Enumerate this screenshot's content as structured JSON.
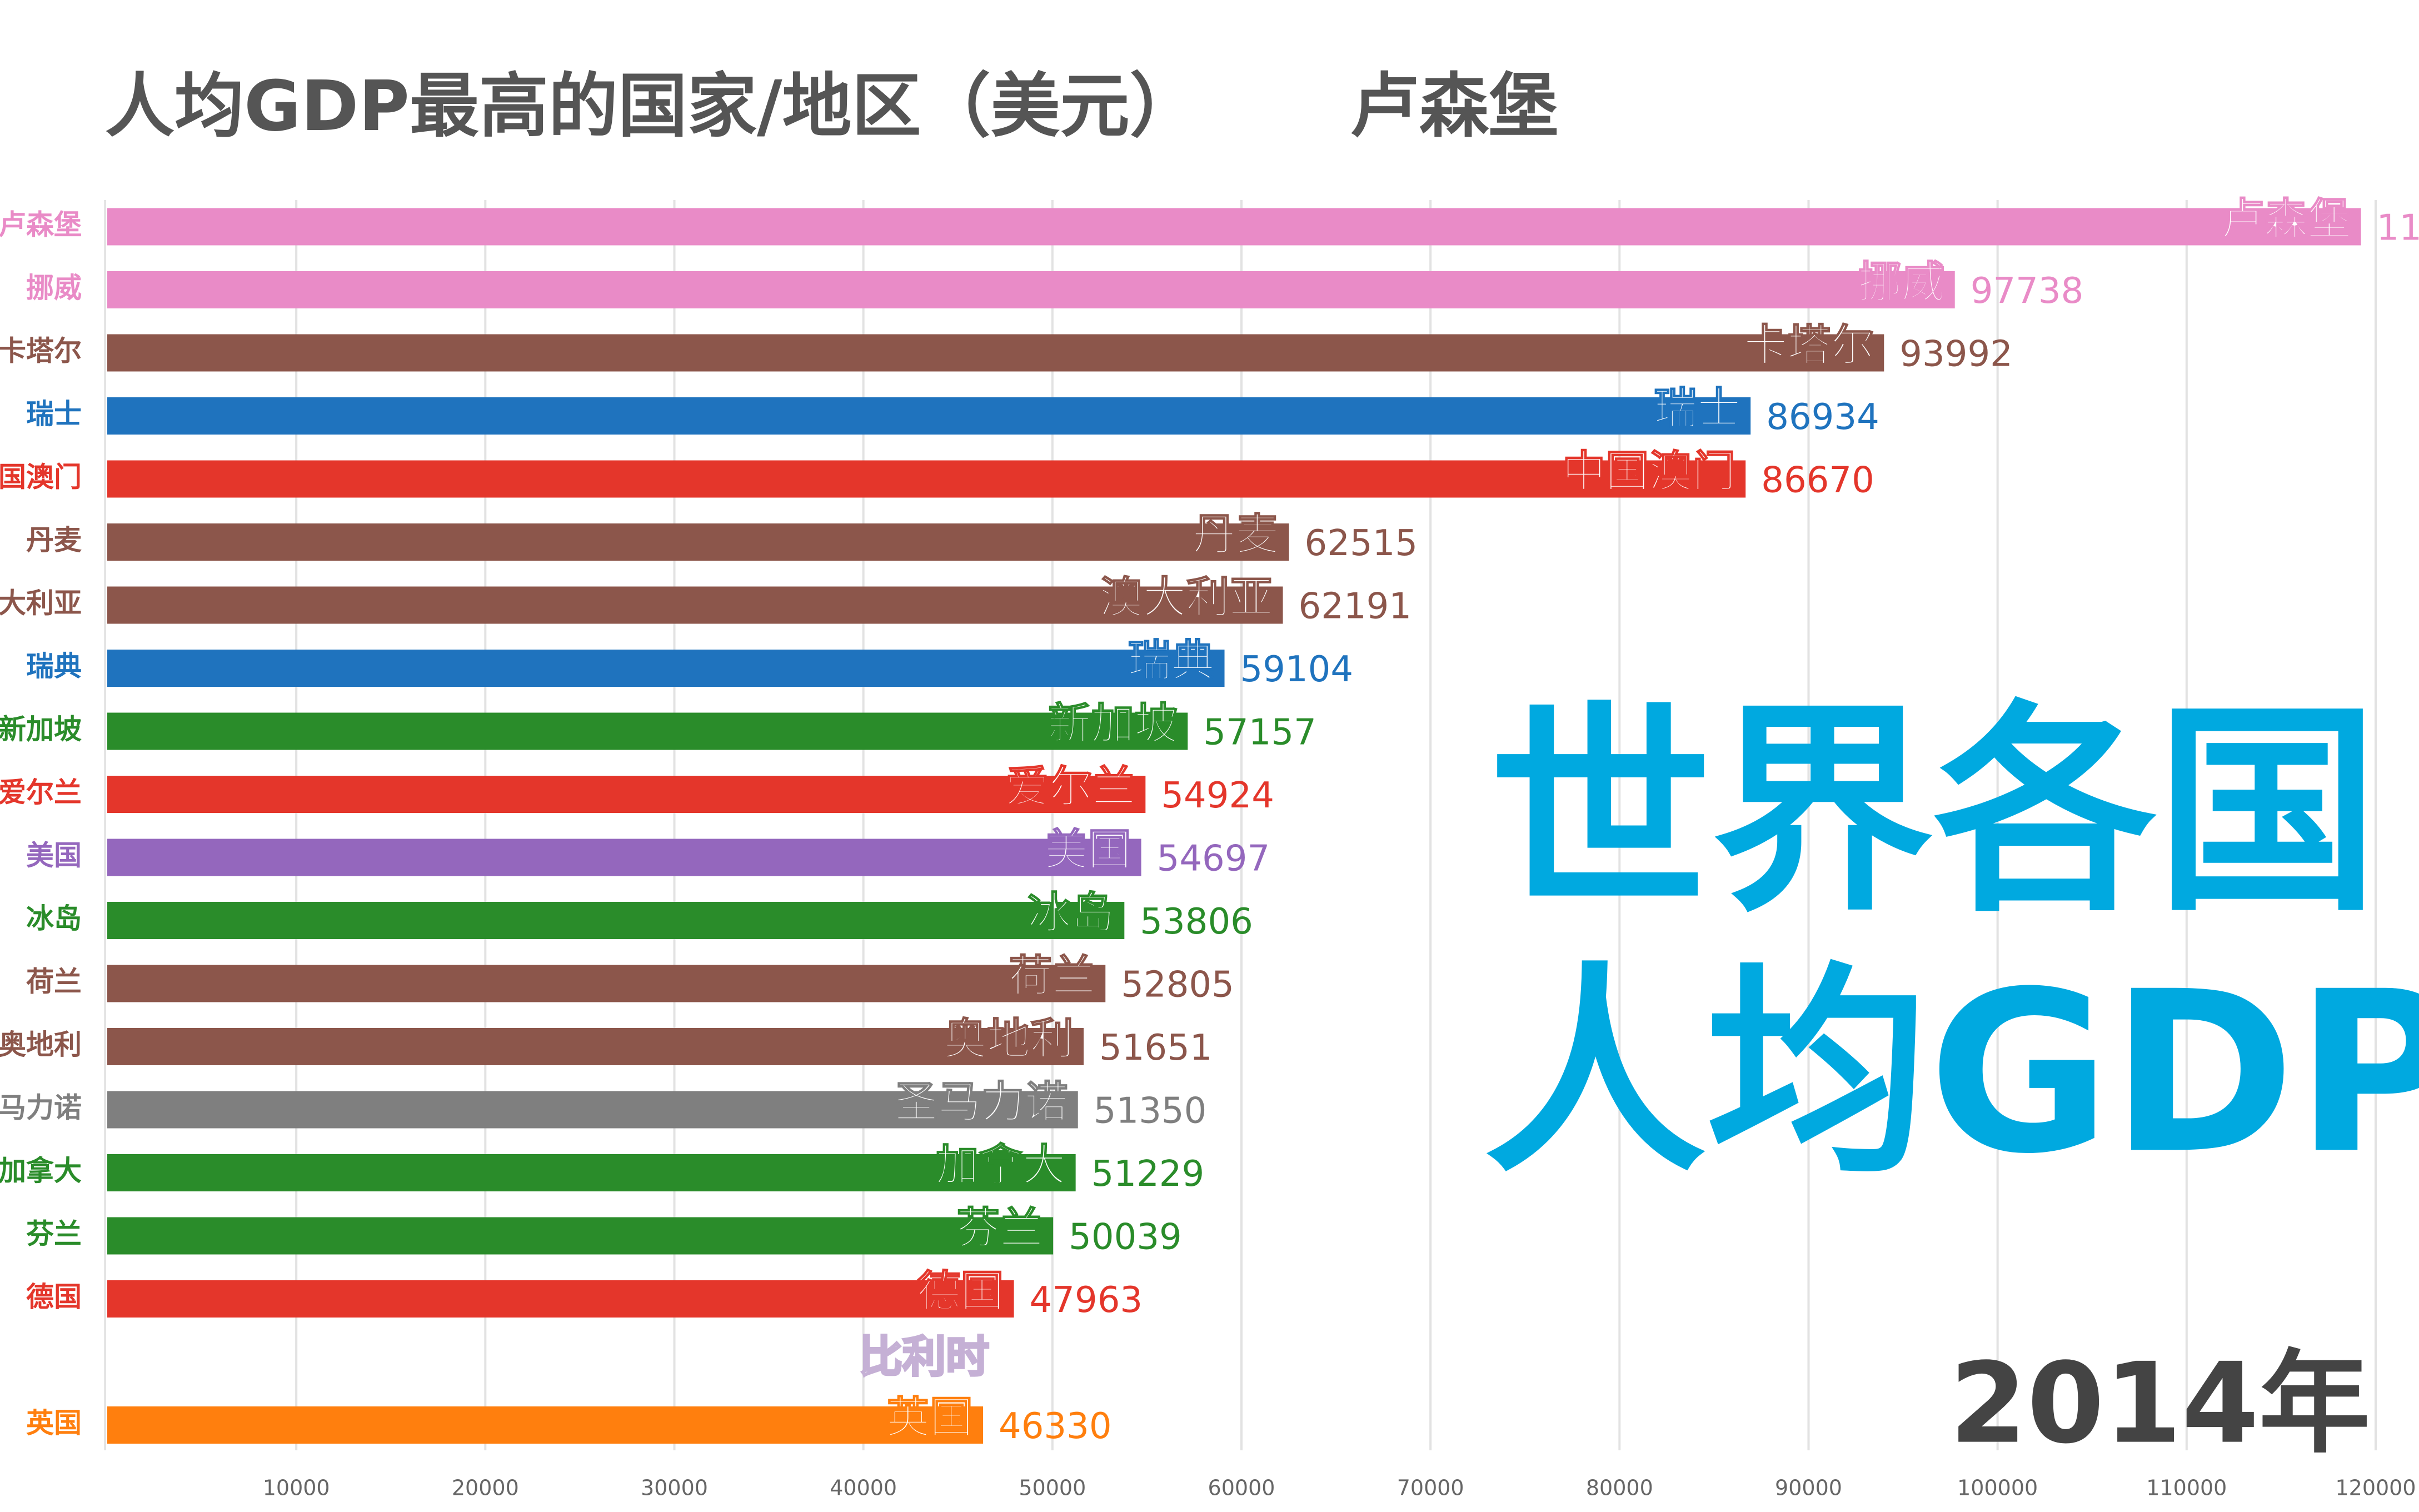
{
  "chart_data": {
    "type": "bar",
    "orientation": "horizontal",
    "title": "人均GDP最高的国家/地区（美元）",
    "leader": "卢森堡",
    "overlay": [
      "世界各国",
      "人均GDP"
    ],
    "year": "2014年",
    "categories": [
      "卢森堡",
      "挪威",
      "卡塔尔",
      "瑞士",
      "中国澳门",
      "丹麦",
      "澳大利亚",
      "瑞典",
      "新加坡",
      "爱尔兰",
      "美国",
      "冰岛",
      "荷兰",
      "奥地利",
      "圣马力诺",
      "加拿大",
      "芬兰",
      "德国",
      "比利时",
      "英国"
    ],
    "values": [
      119225,
      97738,
      93992,
      86934,
      86670,
      62515,
      62191,
      59104,
      57157,
      54924,
      54697,
      53806,
      52805,
      51651,
      51350,
      51229,
      50039,
      47963,
      null,
      46330
    ],
    "colors": [
      "#e98bc7",
      "#e98bc7",
      "#8c564b",
      "#1f73be",
      "#e4362b",
      "#8c564b",
      "#8c564b",
      "#1f73be",
      "#2a8c2a",
      "#e4362b",
      "#9467bd",
      "#2a8c2a",
      "#8c564b",
      "#8c564b",
      "#7f7f7f",
      "#2a8c2a",
      "#2a8c2a",
      "#e4362b",
      "#c5b0d5",
      "#ff7f0e"
    ],
    "xlim": [
      0,
      120000
    ],
    "xticks": [
      10000,
      20000,
      30000,
      40000,
      50000,
      60000,
      70000,
      80000,
      90000,
      100000,
      110000,
      120000
    ],
    "grid": true
  }
}
